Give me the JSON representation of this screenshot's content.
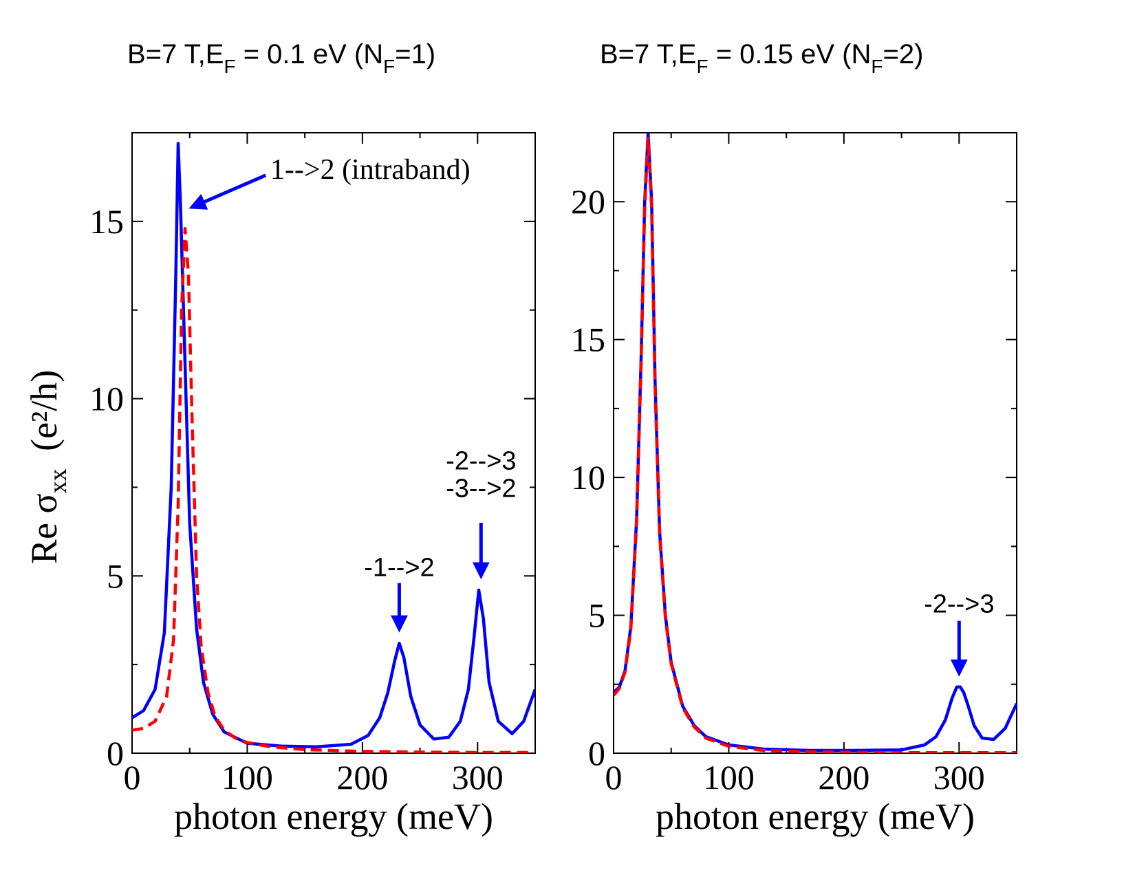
{
  "titles": [
    {
      "prefix": "B=7 T,E",
      "sub1": "F",
      "mid": " = 0.1 eV (N",
      "sub2": "F",
      "suffix": "=1)"
    },
    {
      "prefix": "B=7 T,E",
      "sub1": "F",
      "mid": " = 0.15 eV (N",
      "sub2": "F",
      "suffix": "=2)"
    }
  ],
  "ylabel": {
    "main": "Re σ",
    "sub": "xx",
    "unit": "(e²/h)"
  },
  "colors": {
    "solid": "#0000ff",
    "dashed": "#ff0000",
    "axis": "#000000"
  },
  "chart_data": [
    {
      "type": "line",
      "title": "B=7 T,E_F = 0.1 eV (N_F=1)",
      "xlabel": "photon energy (meV)",
      "ylabel": "Re σ_xx (e²/h)",
      "xlim": [
        0,
        350
      ],
      "ylim": [
        0,
        17.5
      ],
      "xticks": [
        0,
        100,
        200,
        300
      ],
      "yticks": [
        0,
        5,
        10,
        15
      ],
      "minor_x_step": 50,
      "minor_y_step": 2.5,
      "series": [
        {
          "style": "solid",
          "color": "#0000ff",
          "x": [
            0,
            10,
            20,
            28,
            34,
            38,
            40,
            42,
            46,
            50,
            56,
            62,
            70,
            80,
            100,
            130,
            160,
            190,
            205,
            215,
            222,
            228,
            232,
            236,
            242,
            250,
            262,
            275,
            285,
            292,
            297,
            301,
            305,
            310,
            318,
            330,
            340,
            350
          ],
          "y": [
            1.0,
            1.2,
            1.8,
            3.4,
            7.5,
            13.5,
            17.2,
            15.5,
            11.0,
            6.5,
            3.5,
            2.0,
            1.1,
            0.6,
            0.28,
            0.2,
            0.18,
            0.25,
            0.5,
            1.0,
            1.7,
            2.6,
            3.1,
            2.7,
            1.6,
            0.8,
            0.4,
            0.45,
            0.9,
            1.8,
            3.3,
            4.6,
            3.8,
            2.0,
            0.9,
            0.55,
            0.9,
            1.8
          ]
        },
        {
          "style": "dashed",
          "color": "#ff0000",
          "x": [
            0,
            10,
            20,
            30,
            36,
            40,
            43,
            46,
            49,
            52,
            56,
            60,
            66,
            72,
            80,
            90,
            100,
            120,
            150,
            200,
            250,
            300,
            350
          ],
          "y": [
            0.65,
            0.7,
            0.9,
            1.6,
            3.2,
            7.0,
            12.5,
            14.8,
            13.5,
            9.5,
            5.0,
            3.0,
            1.7,
            1.05,
            0.65,
            0.42,
            0.3,
            0.18,
            0.1,
            0.05,
            0.03,
            0.02,
            0.02
          ]
        }
      ],
      "annotations": [
        {
          "lines": [
            "1-->2 (intraband)"
          ],
          "font": "serif",
          "tx": 120,
          "ty": 16.2,
          "arrow_from": [
            116,
            16.3
          ],
          "arrow_to": [
            52,
            15.4
          ]
        },
        {
          "lines": [
            "-1-->2"
          ],
          "font": "sans",
          "tx": 232,
          "ty": 5.0,
          "arrow_from": [
            232,
            4.8
          ],
          "arrow_to": [
            232,
            3.5
          ]
        },
        {
          "lines": [
            "-2-->3",
            "-3-->2"
          ],
          "font": "sans",
          "tx": 303,
          "ty": 8.0,
          "arrow_from": [
            303,
            6.5
          ],
          "arrow_to": [
            303,
            5.0
          ]
        }
      ]
    },
    {
      "type": "line",
      "title": "B=7 T,E_F = 0.15 eV (N_F=2)",
      "xlabel": "photon energy (meV)",
      "ylabel": "",
      "xlim": [
        0,
        350
      ],
      "ylim": [
        0,
        22.5
      ],
      "xticks": [
        0,
        100,
        200,
        300
      ],
      "yticks": [
        0,
        5,
        10,
        15,
        20
      ],
      "minor_x_step": 50,
      "minor_y_step": 2.5,
      "series": [
        {
          "style": "solid",
          "color": "#0000ff",
          "x": [
            0,
            5,
            10,
            15,
            20,
            24,
            27,
            30,
            33,
            36,
            40,
            45,
            50,
            60,
            70,
            80,
            100,
            130,
            170,
            210,
            250,
            270,
            280,
            288,
            294,
            298,
            301,
            304,
            308,
            313,
            320,
            330,
            340,
            350
          ],
          "y": [
            2.2,
            2.4,
            3.0,
            4.6,
            8.5,
            14.5,
            20.0,
            22.5,
            20.0,
            13.5,
            8.0,
            5.0,
            3.3,
            1.7,
            1.0,
            0.6,
            0.3,
            0.15,
            0.1,
            0.1,
            0.12,
            0.3,
            0.6,
            1.2,
            2.0,
            2.4,
            2.4,
            2.2,
            1.7,
            1.0,
            0.55,
            0.5,
            0.9,
            1.8
          ]
        },
        {
          "style": "dashed",
          "color": "#ff0000",
          "x": [
            0,
            5,
            10,
            15,
            20,
            24,
            27,
            30,
            33,
            36,
            40,
            45,
            50,
            60,
            70,
            80,
            100,
            130,
            170,
            210,
            250,
            300,
            350
          ],
          "y": [
            2.1,
            2.35,
            2.95,
            4.5,
            8.4,
            14.3,
            19.8,
            22.3,
            19.8,
            13.3,
            7.9,
            4.9,
            3.25,
            1.65,
            0.95,
            0.55,
            0.25,
            0.1,
            0.05,
            0.03,
            0.02,
            0.02,
            0.02
          ]
        }
      ],
      "annotations": [
        {
          "lines": [
            "-2-->3"
          ],
          "font": "sans",
          "tx": 300,
          "ty": 5.1,
          "arrow_from": [
            300,
            4.8
          ],
          "arrow_to": [
            300,
            2.9
          ]
        }
      ]
    }
  ]
}
